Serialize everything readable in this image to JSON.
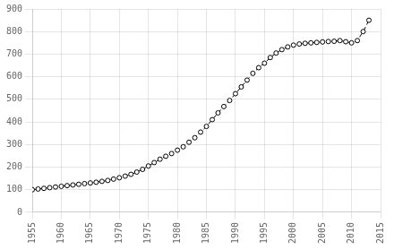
{
  "chart_data": {
    "type": "line",
    "x": [
      1955,
      1956,
      1957,
      1958,
      1959,
      1960,
      1961,
      1962,
      1963,
      1964,
      1965,
      1966,
      1967,
      1968,
      1969,
      1970,
      1971,
      1972,
      1973,
      1974,
      1975,
      1976,
      1977,
      1978,
      1979,
      1980,
      1981,
      1982,
      1983,
      1984,
      1985,
      1986,
      1987,
      1988,
      1989,
      1990,
      1991,
      1992,
      1993,
      1994,
      1995,
      1996,
      1997,
      1998,
      1999,
      2000,
      2001,
      2002,
      2003,
      2004,
      2005,
      2006,
      2007,
      2008,
      2009,
      2010,
      2011,
      2012,
      2013
    ],
    "values": [
      100,
      103,
      106,
      109,
      112,
      115,
      118,
      121,
      124,
      127,
      130,
      133,
      137,
      141,
      147,
      153,
      160,
      168,
      178,
      190,
      205,
      220,
      235,
      248,
      260,
      275,
      290,
      310,
      330,
      355,
      380,
      410,
      440,
      468,
      495,
      525,
      555,
      585,
      615,
      640,
      660,
      685,
      705,
      720,
      732,
      740,
      745,
      748,
      750,
      752,
      754,
      756,
      757,
      760,
      755,
      750,
      760,
      800,
      850
    ],
    "xlim": [
      1955,
      2015
    ],
    "ylim": [
      0,
      900
    ],
    "xticks": [
      1955,
      1960,
      1965,
      1970,
      1975,
      1980,
      1985,
      1990,
      1995,
      2000,
      2005,
      2010,
      2015
    ],
    "yticks": [
      0,
      100,
      200,
      300,
      400,
      500,
      600,
      700,
      800,
      900
    ],
    "color": "#000000",
    "marker": "circle",
    "line_style": "dashed",
    "grid": true
  }
}
